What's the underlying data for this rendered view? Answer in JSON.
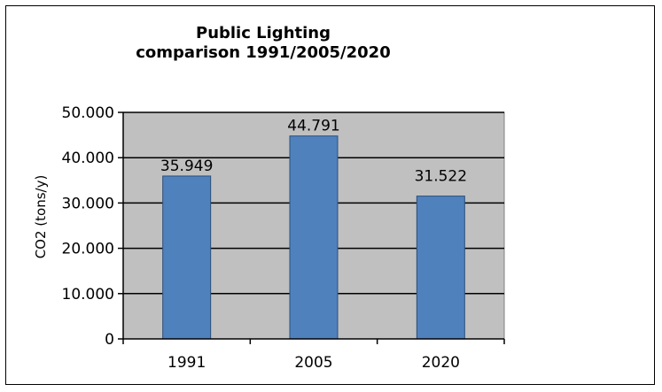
{
  "chart_data": {
    "type": "bar",
    "title_lines": [
      "Public Lighting",
      "comparison  1991/2005/2020"
    ],
    "categories": [
      "1991",
      "2005",
      "2020"
    ],
    "values": [
      35949,
      44791,
      31522
    ],
    "value_labels": [
      "35.949",
      "44.791",
      "31.522"
    ],
    "ylabel": "CO2 (tons/y)",
    "xlabel": "",
    "ylim": [
      0,
      50000
    ],
    "ytick_values": [
      0,
      10000,
      20000,
      30000,
      40000,
      50000
    ],
    "ytick_labels": [
      "0",
      "10.000",
      "20.000",
      "30.000",
      "40.000",
      "50.000"
    ],
    "grid": true,
    "legend": "none",
    "colors": {
      "bar_fill": "#4f81bd",
      "bar_stroke": "#2b4f7a",
      "plot_background": "#c0c0c0",
      "gridline": "#000000"
    }
  }
}
